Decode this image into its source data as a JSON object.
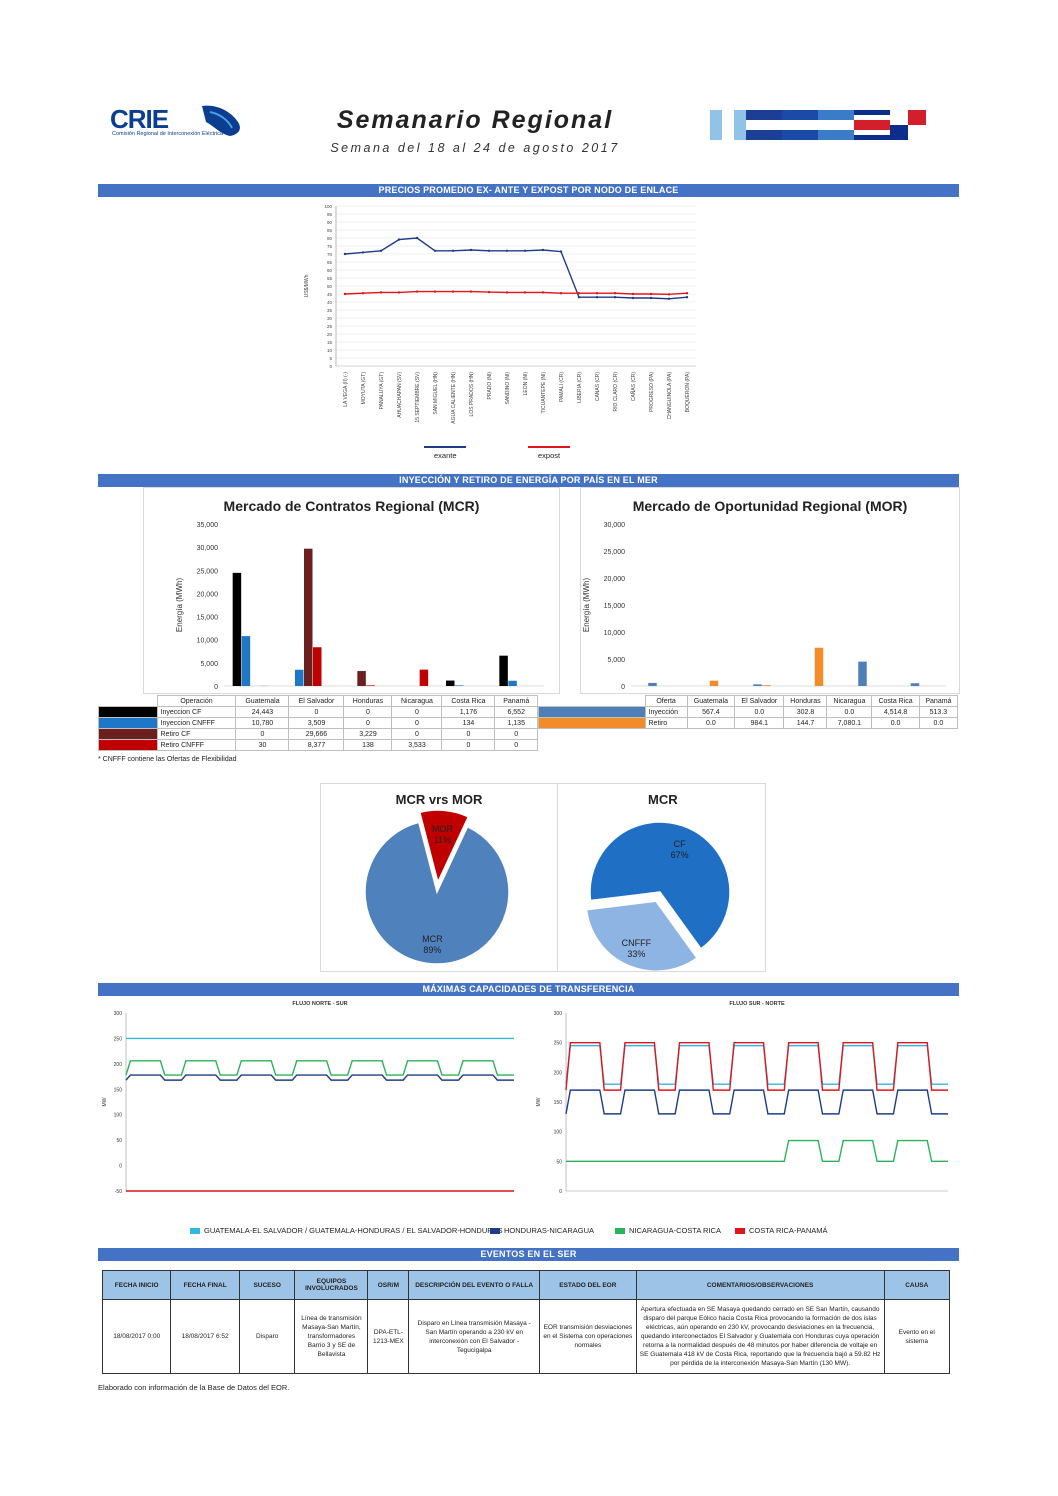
{
  "header": {
    "logo_text": "CRIE",
    "logo_sub": "Comisión Regional de Interconexión Eléctrica",
    "title": "Semanario Regional",
    "subtitle": "Semana del 18 al 24 de agosto 2017"
  },
  "sections": {
    "prices": "PRECIOS PROMEDIO EX- ANTE Y EXPOST POR NODO DE ENLACE",
    "energy": "INYECCIÓN Y RETIRO DE ENERGÍA POR PAÍS EN EL MER",
    "transfer": "MÁXIMAS CAPACIDADES DE TRANSFERENCIA",
    "events": "EVENTOS EN EL SER"
  },
  "colors": {
    "banner": "#4472c4",
    "exante": "#1f3c88",
    "expost": "#e0151b",
    "inyeccion_cf": "#000000",
    "inyeccion_cnfff": "#1f77c8",
    "retiro_cf": "#6b1f1f",
    "retiro_cnfff": "#c00000",
    "mor_inyeccion": "#4f7fb8",
    "mor_retiro": "#f28c28"
  },
  "chart_data": [
    {
      "type": "line",
      "ylabel": "US$/MWh",
      "ylim": [
        0,
        100
      ],
      "yticks": [
        "0",
        "5",
        "10",
        "15",
        "20",
        "25",
        "30",
        "35",
        "40",
        "45",
        "50",
        "55",
        "60",
        "65",
        "70",
        "75",
        "80",
        "85",
        "90",
        "95",
        "100"
      ],
      "categories": [
        "LA VEGA (II) (-)",
        "MOYUTA (GT)",
        "PANALUYA (GT)",
        "AHUACHAPAN (SV)",
        "15 SEPTIEMBRE (SV)",
        "SAN MIGUEL (HN)",
        "AGUA CALIENTE (HN)",
        "LOS PRADOS (HN)",
        "PRADO (NI)",
        "SANDINO (NI)",
        "LEON (NI)",
        "TICUANTEPE (NI)",
        "PAMALI (CR)",
        "LIBERIA (CR)",
        "CANAS (CR)",
        "RIO CLARO (CR)",
        "CAÑAS (CR)",
        "PROGRESO (PA)",
        "CHANGUINOLA (PA)",
        "BOQUERON (PA)"
      ],
      "series": [
        {
          "name": "exante",
          "values": [
            70,
            71,
            72,
            79,
            80,
            72,
            72,
            72.5,
            72,
            72,
            72,
            72.5,
            71.5,
            43,
            43,
            43,
            42.5,
            42.5,
            42,
            43
          ]
        },
        {
          "name": "expost",
          "values": [
            45,
            45.5,
            46,
            46,
            46.5,
            46.5,
            46.5,
            46.5,
            46.2,
            46,
            46,
            46,
            45.5,
            45.5,
            45.5,
            45.5,
            45,
            45,
            44.8,
            45.5
          ]
        }
      ]
    },
    {
      "type": "bar",
      "title": "Mercado de Contratos Regional (MCR)",
      "ylabel": "Energía (MWh)",
      "ylim": [
        0,
        35000
      ],
      "yticks": [
        "0",
        "5,000",
        "10,000",
        "15,000",
        "20,000",
        "25,000",
        "30,000",
        "35,000"
      ],
      "categories": [
        "Guatemala",
        "El Salvador",
        "Honduras",
        "Nicaragua",
        "Costa Rica",
        "Panamá"
      ],
      "header": "Operación",
      "series": [
        {
          "name": "Inyeccion CF",
          "values": [
            24443,
            0,
            0,
            0,
            1176,
            6552
          ],
          "labels": [
            "24,443",
            "0",
            "0",
            "0",
            "1,176",
            "6,552"
          ]
        },
        {
          "name": "Inyeccion CNFFF",
          "values": [
            10780,
            3509,
            0,
            0,
            134,
            1135
          ],
          "labels": [
            "10,780",
            "3,509",
            "0",
            "0",
            "134",
            "1,135"
          ]
        },
        {
          "name": "Retiro CF",
          "values": [
            0,
            29666,
            3229,
            0,
            0,
            0
          ],
          "labels": [
            "0",
            "29,666",
            "3,229",
            "0",
            "0",
            "0"
          ]
        },
        {
          "name": "Retiro CNFFF",
          "values": [
            30,
            8377,
            138,
            3533,
            0,
            0
          ],
          "labels": [
            "30",
            "8,377",
            "138",
            "3,533",
            "0",
            "0"
          ]
        }
      ],
      "footnote": "* CNFFF contiene las Ofertas de Flexibilidad"
    },
    {
      "type": "bar",
      "title": "Mercado de Oportunidad Regional (MOR)",
      "ylabel": "Energía (MWh)",
      "ylim": [
        0,
        30000
      ],
      "yticks": [
        "0",
        "5,000",
        "10,000",
        "15,000",
        "20,000",
        "25,000",
        "30,000"
      ],
      "categories": [
        "Guatemala",
        "El Salvador",
        "Honduras",
        "Nicaragua",
        "Costa Rica",
        "Panamá"
      ],
      "header": "Oferta",
      "series": [
        {
          "name": "Inyección",
          "values": [
            567.4,
            0,
            302.8,
            0,
            4514.8,
            513.3
          ],
          "labels": [
            "567.4",
            "0.0",
            "302.8",
            "0.0",
            "4,514.8",
            "513.3"
          ]
        },
        {
          "name": "Retiro",
          "values": [
            0,
            984.1,
            144.7,
            7080.1,
            0,
            0
          ],
          "labels": [
            "0.0",
            "984.1",
            "144.7",
            "7,080.1",
            "0.0",
            "0.0"
          ]
        }
      ]
    },
    {
      "type": "pie",
      "title": "MCR vrs MOR",
      "slices": [
        {
          "label": "MCR",
          "pct": "89%",
          "value": 89,
          "color": "#4f81bd"
        },
        {
          "label": "MOR",
          "pct": "11%",
          "value": 11,
          "color": "#c00000"
        }
      ]
    },
    {
      "type": "pie",
      "title": "MCR",
      "slices": [
        {
          "label": "CF",
          "pct": "67%",
          "value": 67,
          "color": "#1f6fc5"
        },
        {
          "label": "CNFFF",
          "pct": "33%",
          "value": 33,
          "color": "#8db4e2"
        }
      ]
    },
    {
      "type": "line",
      "title": "FLUJO NORTE - SUR",
      "ylabel": "MW",
      "ylim": [
        -50,
        300
      ],
      "yticks": [
        "-50",
        "0",
        "50",
        "100",
        "150",
        "200",
        "250",
        "300"
      ],
      "series": [
        {
          "name": "GUATEMALA-EL SALVADOR / GUATEMALA-HONDURAS / EL SALVADOR-HONDURAS",
          "color": "#33b5e5",
          "high": 250,
          "low": 250
        },
        {
          "name": "HONDURAS-NICARAGUA",
          "color": "#1f3c88",
          "high": 178,
          "low": 168
        },
        {
          "name": "NICARAGUA-COSTA RICA",
          "color": "#2bb35a",
          "high": 206,
          "low": 178
        },
        {
          "name": "COSTA RICA-PANAMÁ",
          "color": "#e0151b",
          "high": -50,
          "low": -50
        }
      ]
    },
    {
      "type": "line",
      "title": "FLUJO SUR - NORTE",
      "ylabel": "MW",
      "ylim": [
        0,
        300
      ],
      "yticks": [
        "0",
        "50",
        "100",
        "150",
        "200",
        "250",
        "300"
      ],
      "series": [
        {
          "name": "GUATEMALA-EL SALVADOR",
          "color": "#33b5e5",
          "high": 245,
          "low": 180
        },
        {
          "name": "HONDURAS-NICARAGUA",
          "color": "#1f3c88",
          "high": 170,
          "low": 130
        },
        {
          "name": "NICARAGUA-COSTA RICA",
          "color": "#2bb35a",
          "high": 85,
          "low": 50
        },
        {
          "name": "COSTA RICA-PANAMÁ",
          "color": "#e0151b",
          "high": 250,
          "low": 170
        }
      ]
    }
  ],
  "legend_line": {
    "exante": "exante",
    "expost": "expost"
  },
  "transfer_legend": [
    {
      "label": "GUATEMALA-EL SALVADOR / GUATEMALA-HONDURAS / EL SALVADOR-HONDURAS",
      "color": "#33b5e5"
    },
    {
      "label": "HONDURAS-NICARAGUA",
      "color": "#1f3c88"
    },
    {
      "label": "NICARAGUA-COSTA RICA",
      "color": "#2bb35a"
    },
    {
      "label": "COSTA RICA-PANAMÁ",
      "color": "#e0151b"
    }
  ],
  "events": {
    "headers": [
      "FECHA INICIO",
      "FECHA FINAL",
      "SUCESO",
      "EQUIPOS INVOLUCRADOS",
      "OSR/M",
      "DESCRIPCIÓN DEL EVENTO O FALLA",
      "ESTADO DEL EOR",
      "COMENTARIOS/OBSERVACIONES",
      "CAUSA"
    ],
    "row": [
      "18/08/2017 0:00",
      "18/08/2017 6:52",
      "Disparo",
      "Línea de transmisión Masaya-San Martín, transformadores Barrio 3 y SE de Bellavista",
      "DPA-ETL-1213-MEX",
      "Disparo en Línea transmisión Masaya - San Martín operando a 230 kV en interconexión con El Salvador - Tegucigalpa",
      "EOR transmisión desviaciones en el Sistema con operaciones normales",
      "Apertura efectuada en SE Masaya quedando cerrado en SE San Martín, causando disparo del parque Eólico hacia Costa Rica provocando la formación de dos islas eléctricas, aún operando en 230 kV, provocando desviaciones en la frecuencia, quedando interconectados El Salvador y Guatemala con Honduras cuya operación retorna a la normalidad después de 48 minutos por haber diferencia de voltaje en SE Guatemala 418 kV de Costa Rica, reportando que la frecuencia bajó a 59.82 Hz por pérdida de la interconexión Masaya-San Martín (130 MW).",
      "Evento en el sistema"
    ]
  },
  "footer": "Elaborado con información de la Base de Datos del EOR."
}
